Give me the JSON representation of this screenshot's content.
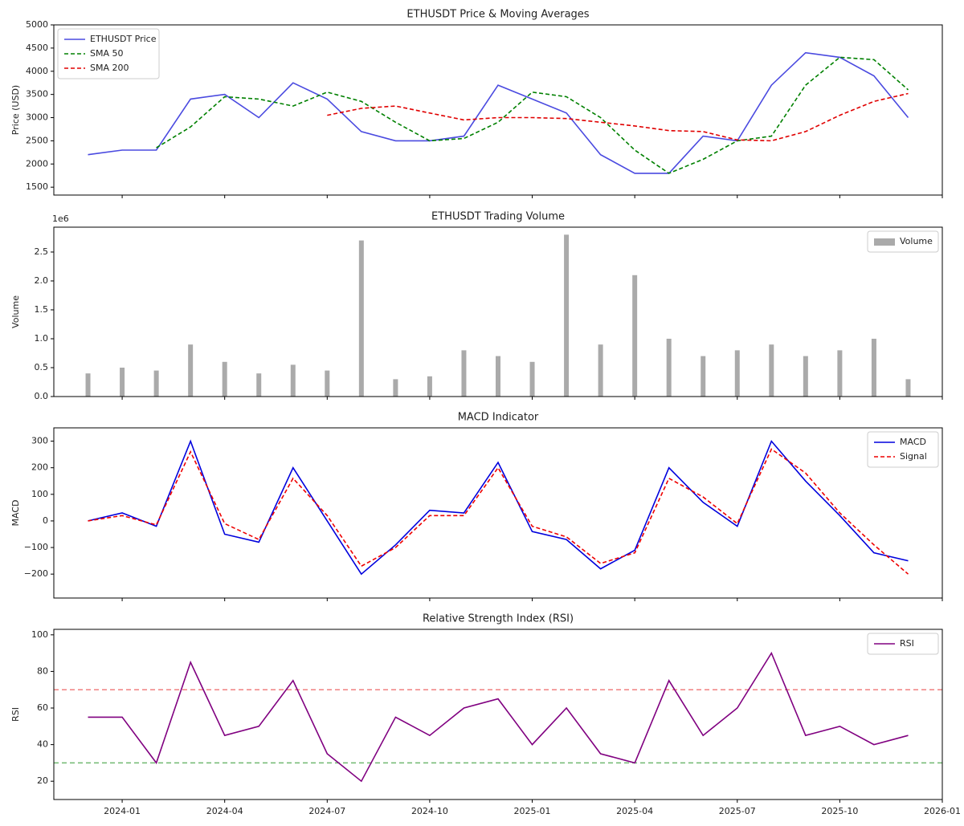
{
  "chart_data": [
    {
      "type": "line",
      "title": "ETHUSDT Price & Moving Averages",
      "ylabel": "Price (USD)",
      "legend": "upper left",
      "x": [
        "2023-12",
        "2024-01",
        "2024-02",
        "2024-03",
        "2024-04",
        "2024-05",
        "2024-06",
        "2024-07",
        "2024-08",
        "2024-09",
        "2024-10",
        "2024-11",
        "2024-12",
        "2025-01",
        "2025-02",
        "2025-03",
        "2025-04",
        "2025-05",
        "2025-06",
        "2025-07",
        "2025-08",
        "2025-09",
        "2025-10",
        "2025-11",
        "2025-12"
      ],
      "xlim": [
        "2023-11",
        "2026-01"
      ],
      "xticks": [
        "2024-01",
        "2024-04",
        "2024-07",
        "2024-10",
        "2025-01",
        "2025-04",
        "2025-07",
        "2025-10",
        "2026-01"
      ],
      "ylim": [
        1330,
        5000
      ],
      "yticks": [
        1500,
        2000,
        2500,
        3000,
        3500,
        4000,
        4500,
        5000
      ],
      "series": [
        {
          "name": "ETHUSDT Price",
          "color": "#4a4ae0",
          "linestyle": "solid",
          "values": [
            2200,
            2300,
            2300,
            3400,
            3500,
            3000,
            3750,
            3400,
            2700,
            2500,
            2500,
            2600,
            3700,
            3400,
            3100,
            2200,
            1800,
            1800,
            2600,
            2500,
            3700,
            4400,
            4300,
            3900,
            3000
          ]
        },
        {
          "name": "SMA 50",
          "color": "#008000",
          "linestyle": "dashed",
          "values": [
            null,
            null,
            2350,
            2800,
            3450,
            3400,
            3250,
            3550,
            3350,
            2900,
            2500,
            2550,
            2900,
            3550,
            3450,
            3000,
            2300,
            1800,
            2100,
            2500,
            2600,
            3700,
            4300,
            4250,
            3600
          ]
        },
        {
          "name": "SMA 200",
          "color": "#e00000",
          "linestyle": "dashed",
          "values": [
            null,
            null,
            null,
            null,
            null,
            null,
            null,
            3050,
            3200,
            3250,
            3100,
            2950,
            3000,
            3000,
            2980,
            2900,
            2820,
            2720,
            2700,
            2520,
            2500,
            2700,
            3050,
            3350,
            3520
          ]
        }
      ]
    },
    {
      "type": "bar",
      "title": "ETHUSDT Trading Volume",
      "ylabel": "Volume",
      "legend": "upper right",
      "offset_label": "1e6",
      "x": [
        "2023-12",
        "2024-01",
        "2024-02",
        "2024-03",
        "2024-04",
        "2024-05",
        "2024-06",
        "2024-07",
        "2024-08",
        "2024-09",
        "2024-10",
        "2024-11",
        "2024-12",
        "2025-01",
        "2025-02",
        "2025-03",
        "2025-04",
        "2025-05",
        "2025-06",
        "2025-07",
        "2025-08",
        "2025-09",
        "2025-10",
        "2025-11",
        "2025-12"
      ],
      "xlim": [
        "2023-11",
        "2026-01"
      ],
      "xticks": [
        "2024-01",
        "2024-04",
        "2024-07",
        "2024-10",
        "2025-01",
        "2025-04",
        "2025-07",
        "2025-10",
        "2026-01"
      ],
      "ylim": [
        0,
        2930000
      ],
      "yticks": [
        {
          "value": 0,
          "label": "0.0"
        },
        {
          "value": 500000,
          "label": "0.5"
        },
        {
          "value": 1000000,
          "label": "1.0"
        },
        {
          "value": 1500000,
          "label": "1.5"
        },
        {
          "value": 2000000,
          "label": "2.0"
        },
        {
          "value": 2500000,
          "label": "2.5"
        }
      ],
      "series": [
        {
          "name": "Volume",
          "color": "#aaaaaa",
          "values": [
            400000,
            500000,
            450000,
            900000,
            600000,
            400000,
            550000,
            450000,
            2700000,
            300000,
            350000,
            800000,
            700000,
            600000,
            2800000,
            900000,
            2100000,
            1000000,
            700000,
            800000,
            900000,
            700000,
            800000,
            1000000,
            300000
          ]
        }
      ]
    },
    {
      "type": "line",
      "title": "MACD Indicator",
      "ylabel": "MACD",
      "legend": "upper right",
      "x": [
        "2023-12",
        "2024-01",
        "2024-02",
        "2024-03",
        "2024-04",
        "2024-05",
        "2024-06",
        "2024-07",
        "2024-08",
        "2024-09",
        "2024-10",
        "2024-11",
        "2024-12",
        "2025-01",
        "2025-02",
        "2025-03",
        "2025-04",
        "2025-05",
        "2025-06",
        "2025-07",
        "2025-08",
        "2025-09",
        "2025-10",
        "2025-11",
        "2025-12"
      ],
      "xlim": [
        "2023-11",
        "2026-01"
      ],
      "xticks": [
        "2024-01",
        "2024-04",
        "2024-07",
        "2024-10",
        "2025-01",
        "2025-04",
        "2025-07",
        "2025-10",
        "2026-01"
      ],
      "ylim": [
        -290,
        350
      ],
      "yticks": [
        {
          "value": -200,
          "label": "−200"
        },
        {
          "value": -100,
          "label": "−100"
        },
        0,
        100,
        200,
        300
      ],
      "series": [
        {
          "name": "MACD",
          "color": "#0000dd",
          "linestyle": "solid",
          "values": [
            0,
            30,
            -20,
            300,
            -50,
            -80,
            200,
            0,
            -200,
            -90,
            40,
            30,
            220,
            -40,
            -70,
            -180,
            -110,
            200,
            70,
            -20,
            300,
            150,
            20,
            -120,
            -150
          ]
        },
        {
          "name": "Signal",
          "color": "#ee0000",
          "linestyle": "dashed",
          "values": [
            0,
            20,
            -15,
            260,
            -10,
            -70,
            160,
            20,
            -170,
            -100,
            20,
            20,
            200,
            -20,
            -60,
            -160,
            -120,
            160,
            90,
            -10,
            270,
            180,
            30,
            -90,
            -200
          ]
        }
      ]
    },
    {
      "type": "line",
      "title": "Relative Strength Index (RSI)",
      "ylabel": "RSI",
      "legend": "upper right",
      "x": [
        "2023-12",
        "2024-01",
        "2024-02",
        "2024-03",
        "2024-04",
        "2024-05",
        "2024-06",
        "2024-07",
        "2024-08",
        "2024-09",
        "2024-10",
        "2024-11",
        "2024-12",
        "2025-01",
        "2025-02",
        "2025-03",
        "2025-04",
        "2025-05",
        "2025-06",
        "2025-07",
        "2025-08",
        "2025-09",
        "2025-10",
        "2025-11",
        "2025-12"
      ],
      "xlim": [
        "2023-11",
        "2026-01"
      ],
      "xticks": [
        "2024-01",
        "2024-04",
        "2024-07",
        "2024-10",
        "2025-01",
        "2025-04",
        "2025-07",
        "2025-10",
        "2026-01"
      ],
      "ylim": [
        10,
        103
      ],
      "yticks": [
        20,
        40,
        60,
        80,
        100
      ],
      "hlines": [
        {
          "value": 70,
          "color": "#f08080"
        },
        {
          "value": 30,
          "color": "#70b870"
        }
      ],
      "series": [
        {
          "name": "RSI",
          "color": "#800080",
          "linestyle": "solid",
          "values": [
            55,
            55,
            30,
            85,
            45,
            50,
            75,
            35,
            20,
            55,
            45,
            60,
            65,
            40,
            60,
            35,
            30,
            75,
            45,
            60,
            90,
            45,
            50,
            40,
            45
          ]
        }
      ]
    }
  ]
}
